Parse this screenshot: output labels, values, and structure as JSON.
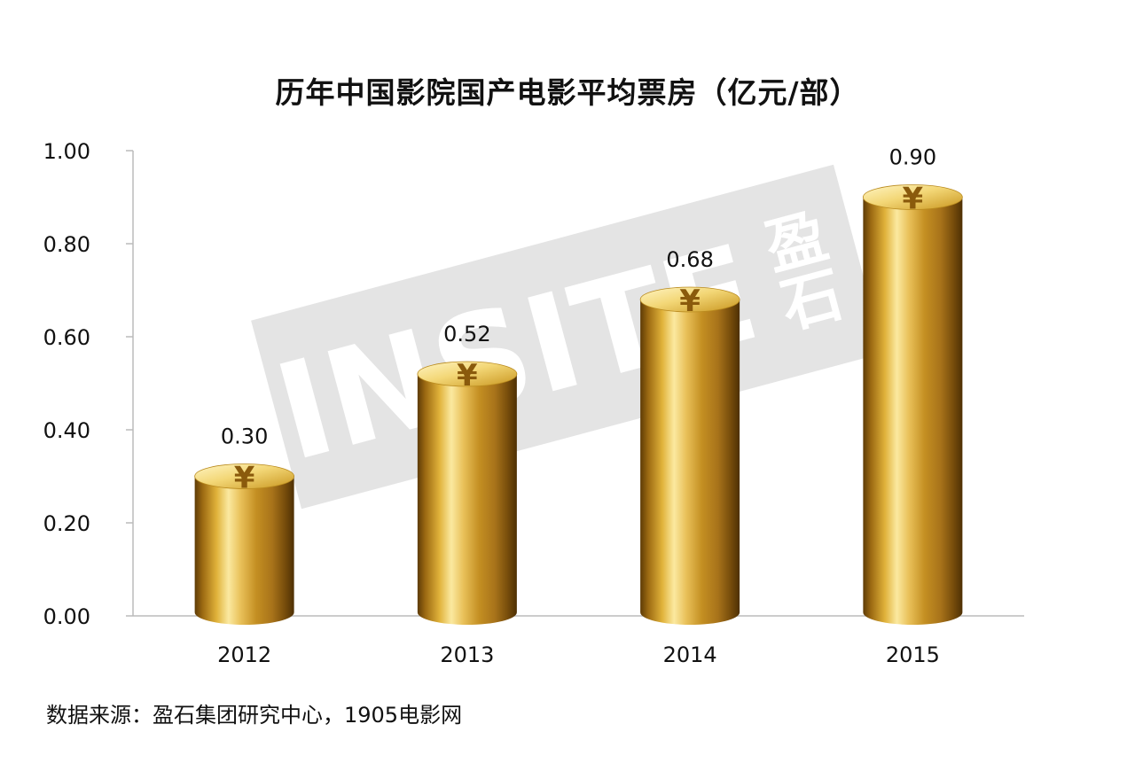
{
  "chart_data": {
    "type": "bar",
    "title": "历年中国影院国产电影平均票房（亿元/部）",
    "categories": [
      "2012",
      "2013",
      "2014",
      "2015"
    ],
    "values": [
      0.3,
      0.52,
      0.68,
      0.9
    ],
    "value_labels": [
      "0.30",
      "0.52",
      "0.68",
      "0.90"
    ],
    "yticks": [
      "0.00",
      "0.20",
      "0.40",
      "0.60",
      "0.80",
      "1.00"
    ],
    "ylim": [
      0,
      1.0
    ],
    "xlabel": "",
    "ylabel": "",
    "grid": false,
    "legend": "none",
    "bar_style": "gold-cylinder",
    "bar_symbol": "¥",
    "colors": {
      "gold_light": "#f7e38a",
      "gold_mid": "#d9a92a",
      "gold_dark": "#6e4708",
      "axis": "#bbbbbb"
    }
  },
  "watermark": {
    "brand": "INSITE",
    "cn": "盈石"
  },
  "source": "数据来源：盈石集团研究中心，1905电影网"
}
